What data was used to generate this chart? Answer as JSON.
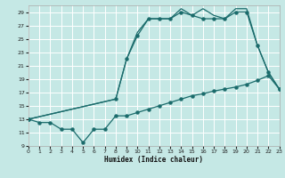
{
  "xlabel": "Humidex (Indice chaleur)",
  "bg_color": "#c5e8e5",
  "grid_color": "#ffffff",
  "line_color": "#1a6b6b",
  "xlim": [
    0,
    23
  ],
  "ylim": [
    9,
    30
  ],
  "xticks": [
    0,
    1,
    2,
    3,
    4,
    5,
    6,
    7,
    8,
    9,
    10,
    11,
    12,
    13,
    14,
    15,
    16,
    17,
    18,
    19,
    20,
    21,
    22,
    23
  ],
  "yticks": [
    9,
    11,
    13,
    15,
    17,
    19,
    21,
    23,
    25,
    27,
    29
  ],
  "line1_x": [
    0,
    1,
    2,
    3,
    4,
    5,
    6,
    7,
    8,
    9,
    10,
    11,
    12,
    13,
    14,
    15,
    16,
    17,
    18,
    19,
    20,
    21,
    22,
    23
  ],
  "line1_y": [
    13,
    12.5,
    12.5,
    11.5,
    11.5,
    9.5,
    11.5,
    11.5,
    13.5,
    13.5,
    14.0,
    14.5,
    15.0,
    15.5,
    16.0,
    16.5,
    16.8,
    17.2,
    17.5,
    17.8,
    18.2,
    18.8,
    19.5,
    17.5
  ],
  "line2_x": [
    0,
    8,
    9,
    10,
    11,
    12,
    13,
    14,
    15,
    16,
    17,
    18,
    19,
    20,
    21,
    22,
    23
  ],
  "line2_y": [
    13,
    16,
    22,
    25.5,
    28,
    28,
    28,
    29,
    28.5,
    28,
    28,
    28,
    29,
    29,
    24,
    20,
    17.5
  ],
  "line3_x": [
    0,
    8,
    9,
    10,
    11,
    12,
    13,
    14,
    15,
    16,
    17,
    18,
    19,
    20,
    21,
    22,
    23
  ],
  "line3_y": [
    13,
    16,
    22,
    26,
    28,
    28,
    28,
    29.5,
    28.5,
    29.5,
    28.5,
    28,
    29.5,
    29.5,
    24,
    20,
    17.5
  ]
}
